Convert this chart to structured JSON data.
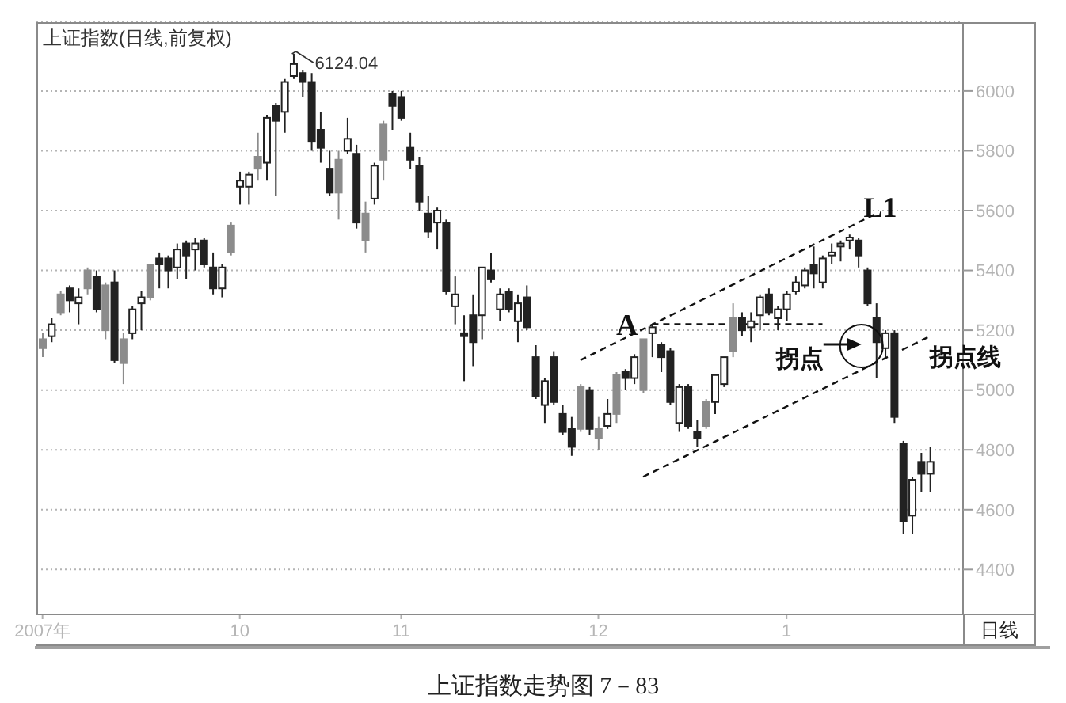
{
  "chart_data": {
    "type": "candlestick",
    "title": "上证指数(日线,前复权)",
    "categories": [
      "2007年",
      null,
      null,
      null,
      null,
      null,
      null,
      null,
      null,
      null,
      null,
      null,
      null,
      null,
      null,
      null,
      null,
      null,
      null,
      null,
      null,
      null,
      "10",
      null,
      null,
      null,
      null,
      null,
      null,
      null,
      null,
      null,
      null,
      null,
      null,
      null,
      null,
      null,
      null,
      null,
      "11",
      null,
      null,
      null,
      null,
      null,
      null,
      null,
      null,
      null,
      null,
      null,
      null,
      null,
      null,
      null,
      null,
      null,
      null,
      null,
      null,
      null,
      "12",
      null,
      null,
      null,
      null,
      null,
      null,
      null,
      null,
      null,
      null,
      null,
      null,
      null,
      null,
      null,
      null,
      null,
      null,
      null,
      null,
      "1",
      null,
      null,
      null,
      null,
      null,
      null,
      null,
      null,
      null,
      null,
      null,
      null,
      null,
      null,
      null,
      null
    ],
    "ohlc": [
      [
        5140,
        5190,
        5110,
        5170
      ],
      [
        5180,
        5240,
        5160,
        5220
      ],
      [
        5260,
        5330,
        5250,
        5320
      ],
      [
        5340,
        5350,
        5260,
        5300
      ],
      [
        5290,
        5340,
        5220,
        5310
      ],
      [
        5340,
        5410,
        5320,
        5400
      ],
      [
        5380,
        5400,
        5260,
        5270
      ],
      [
        5200,
        5360,
        5170,
        5350
      ],
      [
        5360,
        5400,
        5090,
        5100
      ],
      [
        5090,
        5190,
        5020,
        5170
      ],
      [
        5190,
        5280,
        5170,
        5270
      ],
      [
        5290,
        5330,
        5200,
        5310
      ],
      [
        5310,
        5420,
        5300,
        5420
      ],
      [
        5440,
        5460,
        5340,
        5420
      ],
      [
        5440,
        5450,
        5340,
        5400
      ],
      [
        5410,
        5490,
        5370,
        5470
      ],
      [
        5490,
        5500,
        5370,
        5450
      ],
      [
        5470,
        5510,
        5400,
        5490
      ],
      [
        5500,
        5510,
        5410,
        5420
      ],
      [
        5410,
        5460,
        5320,
        5340
      ],
      [
        5340,
        5420,
        5310,
        5410
      ],
      [
        5460,
        5560,
        5450,
        5550
      ],
      [
        5680,
        5730,
        5620,
        5700
      ],
      [
        5680,
        5730,
        5620,
        5720
      ],
      [
        5740,
        5860,
        5700,
        5780
      ],
      [
        5760,
        5920,
        5700,
        5910
      ],
      [
        5950,
        5960,
        5650,
        5900
      ],
      [
        5930,
        6040,
        5860,
        6030
      ],
      [
        6050,
        6124.04,
        6040,
        6090
      ],
      [
        6060,
        6070,
        5980,
        6030
      ],
      [
        6030,
        6060,
        5800,
        5830
      ],
      [
        5870,
        5930,
        5760,
        5810
      ],
      [
        5740,
        5800,
        5650,
        5660
      ],
      [
        5660,
        5800,
        5570,
        5770
      ],
      [
        5800,
        5910,
        5790,
        5840
      ],
      [
        5790,
        5820,
        5540,
        5560
      ],
      [
        5500,
        5630,
        5460,
        5590
      ],
      [
        5640,
        5760,
        5620,
        5750
      ],
      [
        5770,
        5900,
        5700,
        5890
      ],
      [
        5990,
        6000,
        5870,
        5950
      ],
      [
        5980,
        6000,
        5900,
        5910
      ],
      [
        5810,
        5860,
        5740,
        5770
      ],
      [
        5750,
        5780,
        5600,
        5630
      ],
      [
        5590,
        5650,
        5510,
        5530
      ],
      [
        5560,
        5610,
        5470,
        5600
      ],
      [
        5560,
        5570,
        5320,
        5330
      ],
      [
        5280,
        5380,
        5220,
        5320
      ],
      [
        5190,
        5250,
        5030,
        5180
      ],
      [
        5250,
        5320,
        5080,
        5160
      ],
      [
        5250,
        5410,
        5170,
        5410
      ],
      [
        5400,
        5460,
        5360,
        5370
      ],
      [
        5270,
        5340,
        5230,
        5320
      ],
      [
        5330,
        5340,
        5260,
        5270
      ],
      [
        5230,
        5320,
        5160,
        5290
      ],
      [
        5310,
        5350,
        5200,
        5210
      ],
      [
        5110,
        5150,
        4970,
        4980
      ],
      [
        4950,
        5040,
        4890,
        5030
      ],
      [
        5110,
        5130,
        4950,
        4960
      ],
      [
        4920,
        4950,
        4850,
        4860
      ],
      [
        4870,
        4910,
        4780,
        4810
      ],
      [
        4870,
        5020,
        4860,
        5010
      ],
      [
        5000,
        5010,
        4850,
        4870
      ],
      [
        4840,
        4910,
        4800,
        4870
      ],
      [
        4880,
        4970,
        4870,
        4920
      ],
      [
        4920,
        5060,
        4890,
        5050
      ],
      [
        5060,
        5070,
        5000,
        5040
      ],
      [
        5040,
        5120,
        5020,
        5110
      ],
      [
        5000,
        5170,
        4990,
        5170
      ],
      [
        5190,
        5220,
        5110,
        5210
      ],
      [
        5150,
        5160,
        5060,
        5110
      ],
      [
        5130,
        5140,
        4950,
        4960
      ],
      [
        4890,
        5020,
        4860,
        5010
      ],
      [
        5010,
        5020,
        4870,
        4880
      ],
      [
        4860,
        4900,
        4810,
        4840
      ],
      [
        4880,
        4970,
        4870,
        4960
      ],
      [
        4960,
        5050,
        4920,
        5050
      ],
      [
        5020,
        5110,
        5010,
        5110
      ],
      [
        5130,
        5290,
        5110,
        5240
      ],
      [
        5240,
        5260,
        5180,
        5200
      ],
      [
        5210,
        5260,
        5160,
        5230
      ],
      [
        5250,
        5320,
        5200,
        5310
      ],
      [
        5320,
        5340,
        5250,
        5260
      ],
      [
        5240,
        5280,
        5200,
        5270
      ],
      [
        5270,
        5330,
        5230,
        5320
      ],
      [
        5330,
        5380,
        5320,
        5360
      ],
      [
        5350,
        5410,
        5340,
        5400
      ],
      [
        5420,
        5480,
        5340,
        5390
      ],
      [
        5360,
        5450,
        5340,
        5440
      ],
      [
        5450,
        5490,
        5420,
        5460
      ],
      [
        5480,
        5500,
        5430,
        5490
      ],
      [
        5500,
        5520,
        5470,
        5510
      ],
      [
        5500,
        5510,
        5410,
        5450
      ],
      [
        5400,
        5410,
        5280,
        5290
      ],
      [
        5240,
        5290,
        5040,
        5160
      ],
      [
        5140,
        5200,
        5110,
        5190
      ],
      [
        5190,
        5200,
        4890,
        4910
      ],
      [
        4820,
        4830,
        4520,
        4560
      ],
      [
        4580,
        4710,
        4520,
        4700
      ],
      [
        4760,
        4790,
        4660,
        4720
      ],
      [
        4720,
        4810,
        4660,
        4760
      ]
    ],
    "colors": [
      "#8c8c8c",
      "#ffffff",
      "#8c8c8c",
      "#222222",
      "#ffffff",
      "#8c8c8c",
      "#222222",
      "#8c8c8c",
      "#222222",
      "#8c8c8c",
      "#ffffff",
      "#ffffff",
      "#8c8c8c",
      "#222222",
      "#222222",
      "#ffffff",
      "#222222",
      "#ffffff",
      "#222222",
      "#222222",
      "#ffffff",
      "#8c8c8c",
      "#ffffff",
      "#ffffff",
      "#8c8c8c",
      "#ffffff",
      "#222222",
      "#ffffff",
      "#ffffff",
      "#222222",
      "#222222",
      "#222222",
      "#222222",
      "#8c8c8c",
      "#ffffff",
      "#222222",
      "#8c8c8c",
      "#ffffff",
      "#8c8c8c",
      "#222222",
      "#222222",
      "#222222",
      "#222222",
      "#222222",
      "#ffffff",
      "#222222",
      "#ffffff",
      "#222222",
      "#222222",
      "#ffffff",
      "#222222",
      "#ffffff",
      "#222222",
      "#ffffff",
      "#222222",
      "#222222",
      "#ffffff",
      "#222222",
      "#222222",
      "#222222",
      "#8c8c8c",
      "#222222",
      "#8c8c8c",
      "#ffffff",
      "#8c8c8c",
      "#222222",
      "#ffffff",
      "#8c8c8c",
      "#ffffff",
      "#222222",
      "#222222",
      "#ffffff",
      "#222222",
      "#222222",
      "#8c8c8c",
      "#ffffff",
      "#ffffff",
      "#8c8c8c",
      "#222222",
      "#ffffff",
      "#ffffff",
      "#222222",
      "#ffffff",
      "#ffffff",
      "#ffffff",
      "#ffffff",
      "#222222",
      "#ffffff",
      "#ffffff",
      "#ffffff",
      "#ffffff",
      "#222222",
      "#222222",
      "#222222",
      "#ffffff",
      "#222222",
      "#222222",
      "#ffffff",
      "#222222",
      "#ffffff"
    ],
    "series": [
      {
        "type": "line",
        "name": "L1",
        "color": "#111111",
        "line_style": "dashed",
        "values": [
          null,
          null,
          null,
          null,
          null,
          null,
          null,
          null,
          null,
          null,
          null,
          null,
          null,
          null,
          null,
          null,
          null,
          null,
          null,
          null,
          null,
          null,
          null,
          null,
          null,
          null,
          null,
          null,
          null,
          null,
          null,
          null,
          null,
          null,
          null,
          null,
          null,
          null,
          null,
          null,
          null,
          null,
          null,
          null,
          null,
          null,
          null,
          null,
          null,
          null,
          null,
          null,
          null,
          null,
          null,
          null,
          null,
          null,
          null,
          null,
          5100,
          null,
          null,
          null,
          null,
          null,
          null,
          null,
          null,
          null,
          null,
          null,
          null,
          null,
          null,
          null,
          null,
          null,
          null,
          null,
          null,
          null,
          null,
          null,
          null,
          null,
          null,
          null,
          null,
          null,
          null,
          null,
          null,
          5590,
          null,
          null,
          null,
          null,
          null,
          null
        ]
      },
      {
        "type": "line",
        "name": "拐点线",
        "color": "#111111",
        "line_style": "dashed",
        "values": [
          null,
          null,
          null,
          null,
          null,
          null,
          null,
          null,
          null,
          null,
          null,
          null,
          null,
          null,
          null,
          null,
          null,
          null,
          null,
          null,
          null,
          null,
          null,
          null,
          null,
          null,
          null,
          null,
          null,
          null,
          null,
          null,
          null,
          null,
          null,
          null,
          null,
          null,
          null,
          null,
          null,
          null,
          null,
          null,
          null,
          null,
          null,
          null,
          null,
          null,
          null,
          null,
          null,
          null,
          null,
          null,
          null,
          null,
          null,
          null,
          null,
          null,
          null,
          null,
          null,
          null,
          null,
          4710,
          null,
          null,
          null,
          null,
          null,
          null,
          null,
          null,
          null,
          null,
          null,
          null,
          null,
          null,
          null,
          null,
          null,
          null,
          null,
          null,
          null,
          null,
          null,
          null,
          null,
          null,
          null,
          null,
          null,
          null,
          null,
          5180
        ]
      },
      {
        "type": "line",
        "color": "#111111",
        "line_style": "dashed",
        "values": [
          null,
          null,
          null,
          null,
          null,
          null,
          null,
          null,
          null,
          null,
          null,
          null,
          null,
          null,
          null,
          null,
          null,
          null,
          null,
          null,
          null,
          null,
          null,
          null,
          null,
          null,
          null,
          null,
          null,
          null,
          null,
          null,
          null,
          null,
          null,
          null,
          null,
          null,
          null,
          null,
          null,
          null,
          null,
          null,
          null,
          null,
          null,
          null,
          null,
          null,
          null,
          null,
          null,
          null,
          null,
          null,
          null,
          null,
          null,
          null,
          null,
          null,
          null,
          null,
          null,
          null,
          null,
          null,
          5220,
          null,
          null,
          null,
          null,
          null,
          null,
          null,
          null,
          null,
          null,
          null,
          null,
          null,
          null,
          null,
          null,
          null,
          null,
          5220,
          null,
          null,
          null,
          null,
          null,
          null,
          null,
          null,
          null,
          null,
          null,
          null
        ]
      }
    ],
    "ylim": [
      4250,
      6230
    ],
    "yticks": [
      4400,
      4600,
      4800,
      5000,
      5200,
      5400,
      5600,
      5800,
      6000
    ],
    "grid": "y",
    "marker": "none",
    "annotations": [
      "6124.04",
      "A",
      "拐点",
      "日线",
      "上证指数走势图 7－83"
    ]
  }
}
